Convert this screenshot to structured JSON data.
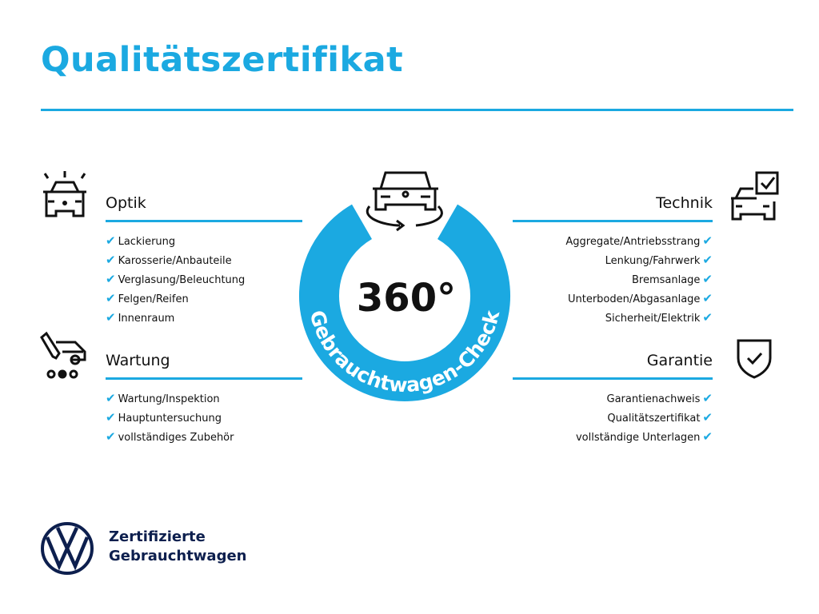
{
  "title": "Qualitätszertifikat",
  "accent_color": "#1ba9e1",
  "badge": {
    "value": "360°",
    "ring_text": "Gebrauchtwagen-Check"
  },
  "sections": {
    "optik": {
      "heading": "Optik",
      "icon": "car-lights-icon",
      "items": [
        "Lackierung",
        "Karosserie/Anbauteile",
        "Verglasung/Beleuchtung",
        "Felgen/Reifen",
        "Innenraum"
      ]
    },
    "wartung": {
      "heading": "Wartung",
      "icon": "service-van-icon",
      "items": [
        "Wartung/Inspektion",
        "Hauptuntersuchung",
        "vollständiges Zubehör"
      ]
    },
    "technik": {
      "heading": "Technik",
      "icon": "car-checklist-icon",
      "items": [
        "Aggregate/Antriebsstrang",
        "Lenkung/Fahrwerk",
        "Bremsanlage",
        "Unterboden/Abgasanlage",
        "Sicherheit/Elektrik"
      ]
    },
    "garantie": {
      "heading": "Garantie",
      "icon": "shield-check-icon",
      "items": [
        "Garantienachweis",
        "Qualitätszertifikat",
        "vollständige Unterlagen"
      ]
    }
  },
  "check_mark": "✔",
  "brand": {
    "line1": "Zertifizierte",
    "line2": "Gebrauchtwagen",
    "logo": "VW",
    "color": "#0d1f4e"
  }
}
